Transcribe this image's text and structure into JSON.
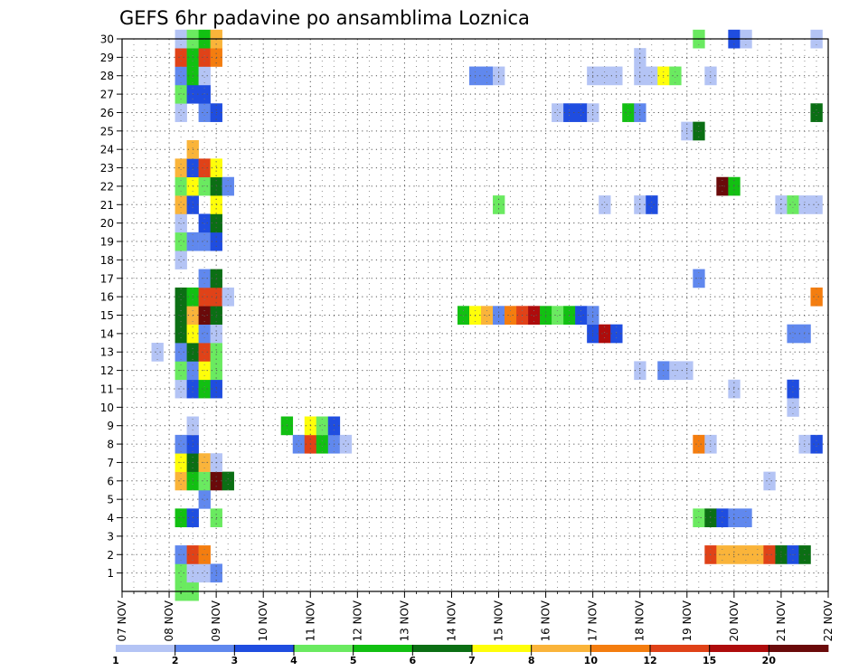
{
  "chart_data": {
    "type": "heatmap",
    "title": "GEFS 6hr padavine po ansamblima Loznica",
    "xlabel": "",
    "ylabel": "",
    "x_ticks": [
      "07 NOV",
      "08 NOV",
      "09 NOV",
      "10 NOV",
      "11 NOV",
      "12 NOV",
      "13 NOV",
      "14 NOV",
      "15 NOV",
      "16 NOV",
      "17 NOV",
      "18 NOV",
      "19 NOV",
      "20 NOV",
      "21 NOV",
      "22 NOV"
    ],
    "y_ticks": [
      1,
      2,
      3,
      4,
      5,
      6,
      7,
      8,
      9,
      10,
      11,
      12,
      13,
      14,
      15,
      16,
      17,
      18,
      19,
      20,
      21,
      22,
      23,
      24,
      25,
      26,
      27,
      28,
      29,
      30
    ],
    "xlim": [
      0,
      60
    ],
    "ylim": [
      0,
      30
    ],
    "x_step_note": "x index counts 6-hour steps from 07 NOV 00Z",
    "grid": true,
    "legend_position": "bottom",
    "color_scale": {
      "labels": [
        "1",
        "2",
        "3",
        "4",
        "5",
        "6",
        "7",
        "8",
        "10",
        "12",
        "15",
        "20"
      ],
      "colors": [
        "#b4c4f5",
        "#6088ee",
        "#1f4de0",
        "#6aea60",
        "#12c012",
        "#0b6f14",
        "#fefe0a",
        "#fab43a",
        "#f47d0f",
        "#e04218",
        "#ae0c0c",
        "#6a0a0a"
      ]
    },
    "cells": [
      {
        "m": 0,
        "x": [
          [
            5,
            1,
            4
          ],
          [
            6,
            1,
            4
          ]
        ]
      },
      {
        "m": 1,
        "x": [
          [
            5,
            1,
            4
          ],
          [
            6,
            1,
            1
          ],
          [
            7,
            1,
            1
          ],
          [
            8,
            1,
            2
          ]
        ]
      },
      {
        "m": 2,
        "x": [
          [
            5,
            1,
            2
          ],
          [
            6,
            1,
            10
          ],
          [
            7,
            1,
            9
          ],
          [
            50,
            1,
            10
          ],
          [
            51,
            4,
            8
          ],
          [
            55,
            1,
            10
          ],
          [
            56,
            1,
            6
          ],
          [
            57,
            1,
            3
          ],
          [
            58,
            1,
            6
          ]
        ]
      },
      {
        "m": 4,
        "x": [
          [
            5,
            1,
            5
          ],
          [
            6,
            1,
            3
          ],
          [
            8,
            1,
            4
          ],
          [
            49,
            1,
            4
          ],
          [
            50,
            1,
            6
          ],
          [
            51,
            1,
            3
          ],
          [
            52,
            2,
            2
          ]
        ]
      },
      {
        "m": 5,
        "x": [
          [
            7,
            1,
            2
          ]
        ]
      },
      {
        "m": 6,
        "x": [
          [
            5,
            1,
            8
          ],
          [
            6,
            1,
            5
          ],
          [
            7,
            1,
            4
          ],
          [
            8,
            1,
            12
          ],
          [
            9,
            1,
            6
          ],
          [
            55,
            1,
            1
          ]
        ]
      },
      {
        "m": 7,
        "x": [
          [
            5,
            1,
            7
          ],
          [
            6,
            1,
            6
          ],
          [
            7,
            1,
            8
          ],
          [
            8,
            1,
            1
          ]
        ]
      },
      {
        "m": 8,
        "x": [
          [
            5,
            1,
            2
          ],
          [
            6,
            1,
            3
          ],
          [
            15,
            1,
            2
          ],
          [
            16,
            1,
            10
          ],
          [
            17,
            1,
            5
          ],
          [
            18,
            1,
            2
          ],
          [
            19,
            1,
            1
          ],
          [
            49,
            1,
            9
          ],
          [
            50,
            1,
            1
          ],
          [
            58,
            1,
            1
          ],
          [
            59,
            1,
            3
          ]
        ]
      },
      {
        "m": 9,
        "x": [
          [
            6,
            1,
            1
          ],
          [
            14,
            1,
            5
          ],
          [
            16,
            1,
            7
          ],
          [
            17,
            1,
            4
          ],
          [
            18,
            1,
            3
          ]
        ]
      },
      {
        "m": 10,
        "x": [
          [
            57,
            1,
            1
          ]
        ]
      },
      {
        "m": 11,
        "x": [
          [
            5,
            1,
            1
          ],
          [
            6,
            1,
            3
          ],
          [
            7,
            1,
            5
          ],
          [
            8,
            1,
            3
          ],
          [
            52,
            1,
            1
          ],
          [
            57,
            1,
            3
          ]
        ]
      },
      {
        "m": 12,
        "x": [
          [
            5,
            1,
            4
          ],
          [
            6,
            1,
            2
          ],
          [
            7,
            1,
            7
          ],
          [
            8,
            1,
            4
          ],
          [
            44,
            1,
            1
          ],
          [
            46,
            1,
            2
          ],
          [
            47,
            2,
            1
          ]
        ]
      },
      {
        "m": 13,
        "x": [
          [
            3,
            1,
            1
          ],
          [
            5,
            1,
            2
          ],
          [
            6,
            1,
            6
          ],
          [
            7,
            1,
            10
          ],
          [
            8,
            1,
            4
          ]
        ]
      },
      {
        "m": 14,
        "x": [
          [
            5,
            1,
            6
          ],
          [
            6,
            1,
            7
          ],
          [
            7,
            1,
            2
          ],
          [
            8,
            1,
            1
          ],
          [
            40,
            1,
            3
          ],
          [
            41,
            1,
            11
          ],
          [
            42,
            1,
            3
          ],
          [
            57,
            2,
            2
          ]
        ]
      },
      {
        "m": 15,
        "x": [
          [
            5,
            1,
            6
          ],
          [
            6,
            1,
            8
          ],
          [
            7,
            1,
            12
          ],
          [
            8,
            1,
            6
          ],
          [
            29,
            1,
            5
          ],
          [
            30,
            1,
            7
          ],
          [
            31,
            1,
            8
          ],
          [
            32,
            1,
            2
          ],
          [
            33,
            1,
            9
          ],
          [
            34,
            1,
            10
          ],
          [
            35,
            1,
            11
          ],
          [
            36,
            1,
            5
          ],
          [
            37,
            1,
            4
          ],
          [
            38,
            1,
            5
          ],
          [
            39,
            1,
            3
          ],
          [
            40,
            1,
            2
          ]
        ]
      },
      {
        "m": 16,
        "x": [
          [
            5,
            1,
            6
          ],
          [
            6,
            1,
            5
          ],
          [
            7,
            2,
            10
          ],
          [
            9,
            1,
            1
          ],
          [
            59,
            1,
            9
          ]
        ]
      },
      {
        "m": 17,
        "x": [
          [
            7,
            1,
            2
          ],
          [
            8,
            1,
            6
          ],
          [
            49,
            1,
            2
          ]
        ]
      },
      {
        "m": 18,
        "x": [
          [
            5,
            1,
            1
          ]
        ]
      },
      {
        "m": 19,
        "x": [
          [
            5,
            1,
            4
          ],
          [
            6,
            1,
            2
          ],
          [
            7,
            1,
            2
          ],
          [
            8,
            1,
            3
          ]
        ]
      },
      {
        "m": 20,
        "x": [
          [
            5,
            1,
            1
          ],
          [
            7,
            1,
            3
          ],
          [
            8,
            1,
            6
          ]
        ]
      },
      {
        "m": 21,
        "x": [
          [
            5,
            1,
            8
          ],
          [
            6,
            1,
            3
          ],
          [
            8,
            1,
            7
          ],
          [
            32,
            1,
            4
          ],
          [
            41,
            1,
            1
          ],
          [
            44,
            1,
            1
          ],
          [
            45,
            1,
            3
          ],
          [
            56,
            1,
            1
          ],
          [
            57,
            1,
            4
          ],
          [
            58,
            2,
            1
          ]
        ]
      },
      {
        "m": 22,
        "x": [
          [
            5,
            1,
            4
          ],
          [
            6,
            1,
            7
          ],
          [
            7,
            1,
            4
          ],
          [
            8,
            1,
            6
          ],
          [
            9,
            1,
            2
          ],
          [
            51,
            1,
            12
          ],
          [
            52,
            1,
            5
          ]
        ]
      },
      {
        "m": 23,
        "x": [
          [
            5,
            1,
            8
          ],
          [
            6,
            1,
            3
          ],
          [
            7,
            1,
            10
          ],
          [
            8,
            1,
            7
          ]
        ]
      },
      {
        "m": 24,
        "x": [
          [
            6,
            1,
            8
          ]
        ]
      },
      {
        "m": 25,
        "x": [
          [
            48,
            1,
            1
          ],
          [
            49,
            1,
            6
          ]
        ]
      },
      {
        "m": 26,
        "x": [
          [
            5,
            1,
            1
          ],
          [
            7,
            1,
            2
          ],
          [
            8,
            1,
            3
          ],
          [
            37,
            1,
            1
          ],
          [
            38,
            2,
            3
          ],
          [
            40,
            1,
            1
          ],
          [
            43,
            1,
            5
          ],
          [
            44,
            1,
            2
          ],
          [
            59,
            1,
            6
          ]
        ]
      },
      {
        "m": 27,
        "x": [
          [
            5,
            1,
            4
          ],
          [
            6,
            2,
            3
          ]
        ]
      },
      {
        "m": 28,
        "x": [
          [
            5,
            1,
            2
          ],
          [
            6,
            1,
            5
          ],
          [
            7,
            1,
            1
          ],
          [
            30,
            2,
            2
          ],
          [
            32,
            1,
            1
          ],
          [
            40,
            3,
            1
          ],
          [
            44,
            2,
            1
          ],
          [
            46,
            1,
            7
          ],
          [
            47,
            1,
            4
          ],
          [
            50,
            1,
            1
          ]
        ]
      },
      {
        "m": 29,
        "x": [
          [
            5,
            1,
            10
          ],
          [
            6,
            1,
            5
          ],
          [
            7,
            1,
            10
          ],
          [
            8,
            1,
            9
          ],
          [
            44,
            1,
            1
          ]
        ]
      },
      {
        "m": 30,
        "x": [
          [
            5,
            1,
            1
          ],
          [
            6,
            1,
            4
          ],
          [
            7,
            1,
            5
          ],
          [
            8,
            1,
            8
          ],
          [
            49,
            1,
            4
          ],
          [
            52,
            1,
            3
          ],
          [
            53,
            1,
            1
          ],
          [
            59,
            1,
            1
          ]
        ]
      }
    ]
  }
}
